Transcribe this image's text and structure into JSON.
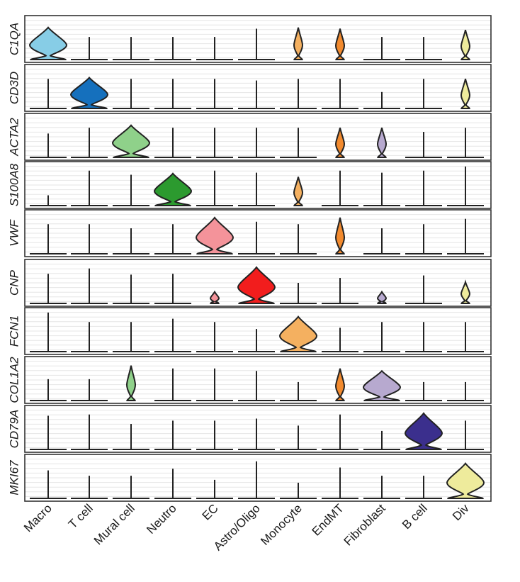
{
  "chart_data": {
    "type": "violin",
    "title": "",
    "xlabel": "",
    "ylabel": "",
    "legend": "none",
    "grid": true,
    "categories": [
      "Macro",
      "T cell",
      "Mural cell",
      "Neutro",
      "EC",
      "Astro/Oligo",
      "Monocyte",
      "EndMT",
      "Fibroblast",
      "B cell",
      "Div"
    ],
    "category_colors": [
      "#87cde6",
      "#1570bd",
      "#8fd18a",
      "#2c9a2f",
      "#f4939a",
      "#f21d1d",
      "#f4b060",
      "#f28a2e",
      "#b7a9cf",
      "#3b2f8d",
      "#eeeb9c"
    ],
    "genes": [
      "C1QA",
      "CD3D",
      "ACTA2",
      "S100A8",
      "VWF",
      "CNP",
      "FCN1",
      "COL1A2",
      "CD79A",
      "MKI67"
    ],
    "series": [
      {
        "gene": "C1QA",
        "max_expression": [
          0.78,
          0.55,
          0.55,
          0.55,
          0.55,
          0.75,
          0.78,
          0.75,
          0.55,
          0.55,
          0.72
        ],
        "enriched": [
          "Macro"
        ],
        "minor": [
          "Monocyte",
          "EndMT",
          "Div"
        ]
      },
      {
        "gene": "CD3D",
        "max_expression": [
          0.72,
          0.75,
          0.72,
          0.72,
          0.72,
          0.68,
          0.72,
          0.72,
          0.4,
          0.72,
          0.72
        ],
        "enriched": [
          "T cell"
        ],
        "minor": [
          "Div"
        ]
      },
      {
        "gene": "ACTA2",
        "max_expression": [
          0.58,
          0.72,
          0.78,
          0.72,
          0.72,
          0.72,
          0.72,
          0.72,
          0.72,
          0.62,
          0.72
        ],
        "enriched": [
          "Mural cell"
        ],
        "minor": [
          "EndMT",
          "Fibroblast"
        ]
      },
      {
        "gene": "S100A8",
        "max_expression": [
          0.25,
          0.85,
          0.75,
          0.78,
          0.85,
          0.8,
          0.7,
          0.85,
          0.8,
          0.85,
          0.95
        ],
        "enriched": [
          "Neutro"
        ],
        "minor": [
          "Monocyte"
        ]
      },
      {
        "gene": "VWF",
        "max_expression": [
          0.72,
          0.72,
          0.62,
          0.72,
          0.88,
          0.78,
          0.72,
          0.88,
          0.62,
          0.72,
          0.85
        ],
        "enriched": [
          "EC"
        ],
        "minor": [
          "EndMT"
        ]
      },
      {
        "gene": "CNP",
        "max_expression": [
          0.72,
          0.85,
          0.7,
          0.72,
          0.28,
          0.88,
          0.5,
          0.62,
          0.28,
          0.68,
          0.52
        ],
        "enriched": [
          "Astro/Oligo"
        ],
        "minor": [
          "EC",
          "Fibroblast",
          "Div"
        ]
      },
      {
        "gene": "FCN1",
        "max_expression": [
          0.95,
          0.72,
          0.72,
          0.8,
          0.72,
          0.55,
          0.85,
          0.58,
          0.72,
          0.72,
          0.72
        ],
        "enriched": [
          "Monocyte"
        ],
        "minor": []
      },
      {
        "gene": "COL1A2",
        "max_expression": [
          0.52,
          0.52,
          0.85,
          0.78,
          0.78,
          0.72,
          0.45,
          0.78,
          0.72,
          0.45,
          0.45
        ],
        "enriched": [
          "Fibroblast"
        ],
        "minor": [
          "Mural cell",
          "EndMT"
        ]
      },
      {
        "gene": "CD79A",
        "max_expression": [
          0.82,
          0.85,
          0.62,
          0.7,
          0.7,
          0.75,
          0.58,
          0.85,
          0.45,
          0.88,
          0.7
        ],
        "enriched": [
          "B cell"
        ],
        "minor": []
      },
      {
        "gene": "MKI67",
        "max_expression": [
          0.68,
          0.55,
          0.55,
          0.72,
          0.45,
          0.9,
          0.38,
          0.75,
          0.55,
          0.55,
          0.85
        ],
        "enriched": [
          "Div"
        ],
        "minor": []
      }
    ]
  }
}
